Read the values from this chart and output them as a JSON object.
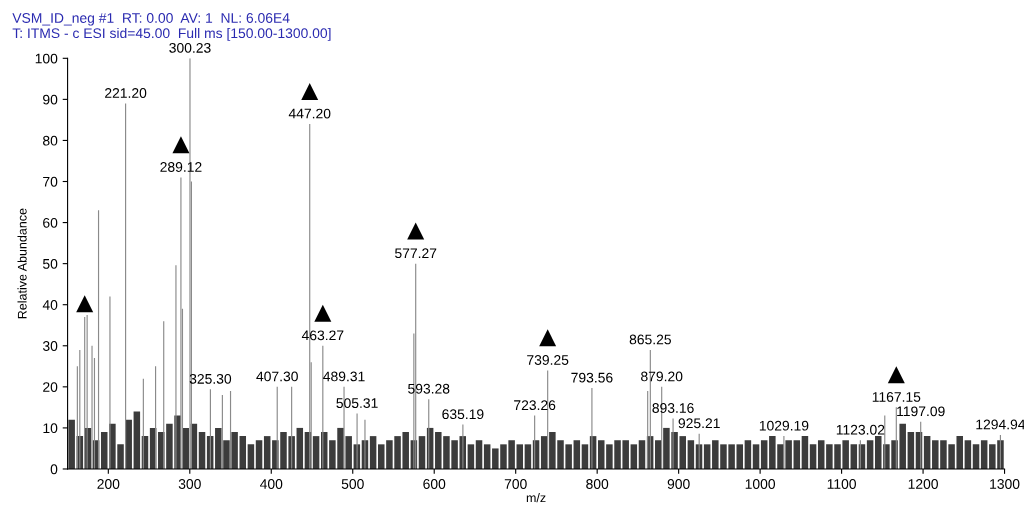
{
  "chart_data": {
    "type": "bar",
    "title": "VSM_ID_neg #1  RT: 0.00  AV: 1  NL: 6.06E4",
    "subtitle": "T: ITMS - c ESI sid=45.00  Full ms [150.00-1300.00]",
    "xlabel": "m/z",
    "ylabel": "Relative Abundance",
    "xlim": [
      150,
      1300
    ],
    "xticks": [
      200,
      300,
      400,
      500,
      600,
      700,
      800,
      900,
      1000,
      1100,
      1200,
      1300
    ],
    "ylim": [
      0,
      100
    ],
    "yticks": [
      0,
      10,
      20,
      30,
      40,
      50,
      60,
      70,
      80,
      90,
      100
    ],
    "grid": false,
    "legend": false,
    "series": [
      {
        "color": "#3c3c3c",
        "x": [
          155,
          165,
          175,
          185,
          195,
          205,
          215,
          225,
          235,
          245,
          255,
          265,
          275,
          285,
          295,
          305,
          315,
          325,
          335,
          345,
          355,
          365,
          375,
          385,
          395,
          405,
          415,
          425,
          435,
          445,
          455,
          465,
          475,
          485,
          495,
          505,
          515,
          525,
          535,
          545,
          555,
          565,
          575,
          585,
          595,
          605,
          615,
          625,
          635,
          645,
          655,
          665,
          675,
          685,
          695,
          705,
          715,
          725,
          735,
          745,
          755,
          765,
          775,
          785,
          795,
          805,
          815,
          825,
          835,
          845,
          855,
          865,
          875,
          885,
          895,
          905,
          915,
          925,
          935,
          945,
          955,
          965,
          975,
          985,
          995,
          1005,
          1015,
          1025,
          1035,
          1045,
          1055,
          1065,
          1075,
          1085,
          1095,
          1105,
          1115,
          1125,
          1135,
          1145,
          1155,
          1165,
          1175,
          1185,
          1195,
          1205,
          1215,
          1225,
          1235,
          1245,
          1255,
          1265,
          1275,
          1285,
          1295
        ],
        "values": [
          12,
          8,
          10,
          7,
          9,
          11,
          6,
          12,
          14,
          8,
          10,
          9,
          11,
          13,
          10,
          11,
          9,
          8,
          10,
          7,
          9,
          8,
          6,
          7,
          8,
          7,
          9,
          8,
          10,
          9,
          8,
          9,
          7,
          10,
          8,
          6,
          7,
          8,
          6,
          7,
          8,
          9,
          7,
          8,
          10,
          9,
          8,
          7,
          8,
          6,
          7,
          6,
          5,
          6,
          7,
          6,
          6,
          7,
          8,
          9,
          7,
          6,
          7,
          6,
          8,
          7,
          6,
          7,
          7,
          6,
          7,
          8,
          7,
          10,
          9,
          8,
          7,
          6,
          6,
          7,
          6,
          6,
          6,
          7,
          6,
          7,
          8,
          6,
          7,
          7,
          8,
          6,
          7,
          6,
          6,
          7,
          6,
          6,
          7,
          8,
          6,
          7,
          11,
          9,
          9,
          8,
          7,
          7,
          6,
          8,
          7,
          6,
          7,
          6,
          7
        ]
      },
      {
        "color": "#8a8a8a",
        "x": [
          162,
          165,
          171,
          174,
          180,
          183,
          188,
          202,
          221.2,
          243,
          258,
          268,
          283,
          289.12,
          291,
          300.23,
          302,
          325.3,
          340,
          350,
          407.3,
          425,
          447.2,
          449,
          463.27,
          489.31,
          505.31,
          515,
          575,
          577.27,
          593.28,
          635.19,
          723.26,
          739.25,
          793.56,
          862,
          865.25,
          879.2,
          893.16,
          925.21,
          1029.19,
          1123.02,
          1153,
          1167.15,
          1197.09,
          1294.94
        ],
        "values": [
          25,
          29,
          37,
          37.5,
          30,
          27,
          63,
          42,
          89,
          22,
          25,
          36,
          49.6,
          71,
          39,
          100,
          70,
          19.4,
          18,
          19,
          20,
          20,
          84,
          26,
          30,
          20,
          13.5,
          12,
          33,
          50,
          17,
          10.8,
          13,
          24,
          19.7,
          19,
          29,
          20,
          12.3,
          8.6,
          8,
          7,
          13,
          15,
          11.5,
          8.3
        ]
      }
    ],
    "annotations": [
      {
        "text": "221.20",
        "x": 221.2,
        "y": 89
      },
      {
        "text": "300.23",
        "x": 300.23,
        "y": 100
      },
      {
        "text": "289.12",
        "x": 289.12,
        "y": 71
      },
      {
        "text": "447.20",
        "x": 447.2,
        "y": 84
      },
      {
        "text": "577.27",
        "x": 577.27,
        "y": 50
      },
      {
        "text": "463.27",
        "x": 463.27,
        "y": 30
      },
      {
        "text": "325.30",
        "x": 325.3,
        "y": 19.4
      },
      {
        "text": "407.30",
        "x": 407.3,
        "y": 20
      },
      {
        "text": "489.31",
        "x": 489.31,
        "y": 20
      },
      {
        "text": "505.31",
        "x": 505.31,
        "y": 13.5
      },
      {
        "text": "593.28",
        "x": 593.28,
        "y": 17
      },
      {
        "text": "635.19",
        "x": 635.19,
        "y": 10.8
      },
      {
        "text": "723.26",
        "x": 723.26,
        "y": 13
      },
      {
        "text": "739.25",
        "x": 739.25,
        "y": 24
      },
      {
        "text": "793.56",
        "x": 793.56,
        "y": 19.7
      },
      {
        "text": "865.25",
        "x": 865.25,
        "y": 29
      },
      {
        "text": "879.20",
        "x": 879.2,
        "y": 20
      },
      {
        "text": "893.16",
        "x": 893.16,
        "y": 12.3
      },
      {
        "text": "925.21",
        "x": 925.21,
        "y": 8.6
      },
      {
        "text": "1029.19",
        "x": 1029.19,
        "y": 8
      },
      {
        "text": "1123.02",
        "x": 1123.02,
        "y": 7
      },
      {
        "text": "1167.15",
        "x": 1167.15,
        "y": 15
      },
      {
        "text": "1197.09",
        "x": 1197.09,
        "y": 11.5
      },
      {
        "text": "1294.94",
        "x": 1294.94,
        "y": 8.3
      },
      {
        "text": "▲",
        "x": 171,
        "y": 37
      },
      {
        "text": "▲",
        "x": 289.12,
        "y": 71
      },
      {
        "text": "▲",
        "x": 447.2,
        "y": 84
      },
      {
        "text": "▲",
        "x": 463.27,
        "y": 30
      },
      {
        "text": "▲",
        "x": 577.27,
        "y": 50
      },
      {
        "text": "▲",
        "x": 739.25,
        "y": 24
      },
      {
        "text": "▲",
        "x": 1167.15,
        "y": 15
      }
    ]
  }
}
